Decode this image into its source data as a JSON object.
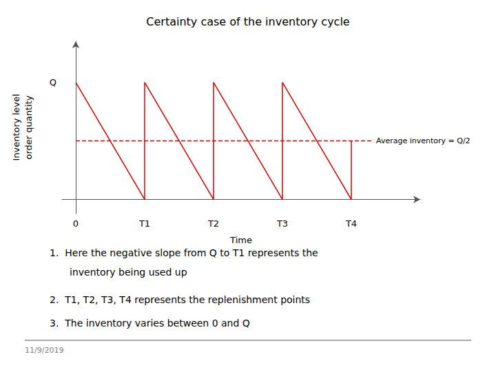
{
  "chart_data": {
    "type": "line",
    "title": "Certainty case of the inventory cycle",
    "x_label": "Time",
    "y_label": "Inventory level\norder quantity",
    "series": [
      {
        "x": [
          0,
          2,
          2,
          4,
          4,
          6,
          6,
          8,
          8
        ],
        "values": [
          1.0,
          0,
          1.0,
          0,
          1.0,
          0,
          1.0,
          0,
          0.5
        ],
        "color": "#cc0000",
        "line_style": "solid"
      },
      {
        "x": [
          0,
          8.6
        ],
        "values": [
          0.5,
          0.5
        ],
        "color": "#cc0000",
        "line_style": "dashed",
        "label": "Average inventory = Q/2"
      }
    ],
    "xlim": [
      -0.4,
      10
    ],
    "ylim": [
      -0.12,
      1.35
    ],
    "xticks": [
      0,
      {
        "value": 2,
        "label": "T1"
      },
      {
        "value": 4,
        "label": "T2"
      },
      {
        "value": 6,
        "label": "T3"
      },
      {
        "value": 8,
        "label": "T4"
      }
    ],
    "yticks": [
      {
        "value": 1.0,
        "label": "Q"
      }
    ],
    "grid": false,
    "notes": [
      "1.  Here the negative slope from Q to T1 represents the",
      "inventory being used up",
      "2.  T1, T2, T3, T4 represents the replenishment points",
      "3.  The inventory varies between 0 and Q"
    ],
    "date": "11/9/2019"
  }
}
